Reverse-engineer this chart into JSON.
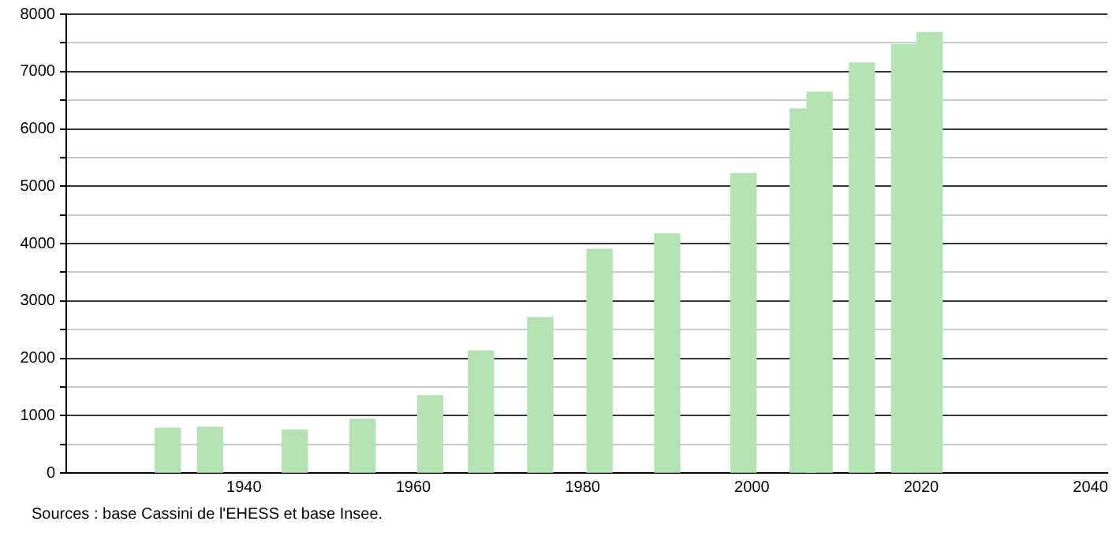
{
  "chart_data": {
    "type": "bar",
    "x": [
      1931,
      1936,
      1946,
      1954,
      1962,
      1968,
      1975,
      1982,
      1990,
      1999,
      2006,
      2008,
      2013,
      2018,
      2021
    ],
    "values": [
      780,
      800,
      750,
      940,
      1350,
      2130,
      2710,
      3900,
      4170,
      5220,
      6350,
      6640,
      7150,
      7470,
      7680
    ],
    "color": "#b3e3b3",
    "xlim": [
      1919,
      2042
    ],
    "xticks": [
      1940,
      1960,
      1980,
      2000,
      2020,
      2040
    ],
    "ylim": [
      0,
      8000
    ],
    "yticks": [
      0,
      {
        "value": 500,
        "label": null
      },
      1000,
      {
        "value": 1500,
        "label": null
      },
      2000,
      {
        "value": 2500,
        "label": null
      },
      3000,
      {
        "value": 3500,
        "label": null
      },
      4000,
      {
        "value": 4500,
        "label": null
      },
      5000,
      {
        "value": 5500,
        "label": null
      },
      6000,
      {
        "value": 6500,
        "label": null
      },
      7000,
      {
        "value": 7500,
        "label": null
      },
      8000
    ],
    "grid": "y",
    "legend": false,
    "annotations": [
      "Sources : base Cassini de l'EHESS et base Insee."
    ]
  }
}
